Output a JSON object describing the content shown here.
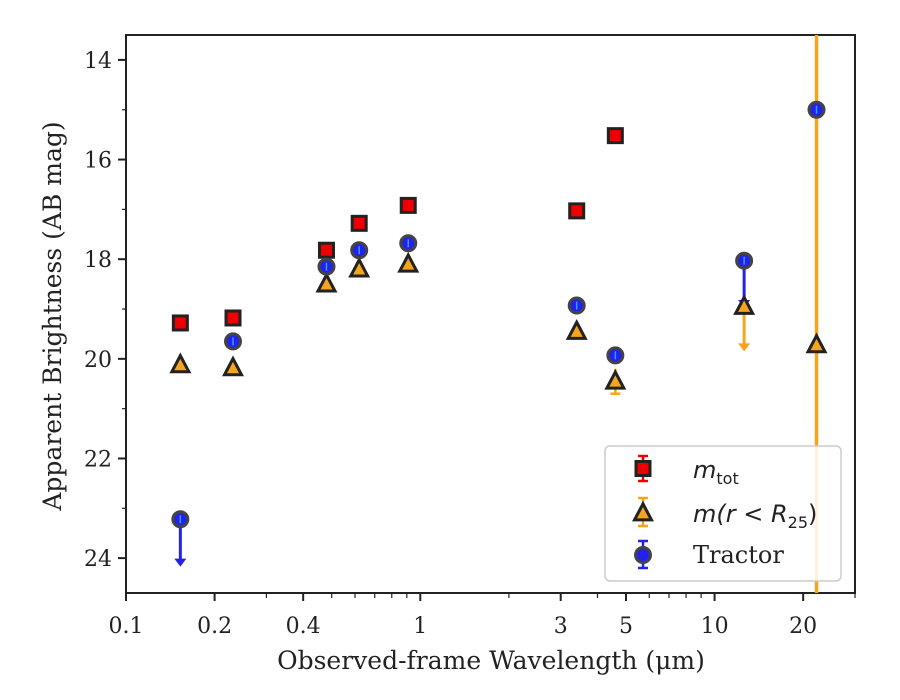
{
  "chart_data": {
    "type": "scatter",
    "xlabel": "Observed-frame Wavelength (μm)",
    "ylabel": "Apparent Brightness (AB mag)",
    "xscale": "log",
    "yaxis_inverted": true,
    "xlim": [
      0.1,
      30
    ],
    "ylim": [
      24.7,
      13.5
    ],
    "xticks": [
      0.1,
      0.2,
      0.4,
      1,
      3,
      5,
      10,
      20
    ],
    "xtick_labels": [
      "0.1",
      "0.2",
      "0.4",
      "1",
      "3",
      "5",
      "10",
      "20"
    ],
    "yticks": [
      14,
      16,
      18,
      20,
      22,
      24
    ],
    "ytick_labels": [
      "14",
      "16",
      "18",
      "20",
      "22",
      "24"
    ],
    "legend_position": "lower-right",
    "series": [
      {
        "name": "m_tot",
        "legend_main": "m",
        "legend_sub": "tot",
        "marker": "square",
        "color": "#ee0000",
        "x": [
          0.153,
          0.231,
          0.48,
          0.62,
          0.91,
          3.4,
          4.6
        ],
        "y": [
          19.28,
          19.18,
          17.82,
          17.28,
          16.92,
          17.03,
          15.52
        ]
      },
      {
        "name": "m(r < R_25)",
        "legend_main": "m(r < R",
        "legend_sub": "25",
        "legend_close": ")",
        "marker": "triangle",
        "color": "#f5a41e",
        "x": [
          0.153,
          0.231,
          0.48,
          0.62,
          0.91,
          3.4,
          4.6,
          12.6,
          22.2
        ],
        "y": [
          20.12,
          20.18,
          18.5,
          18.2,
          18.1,
          19.45,
          20.45,
          18.95,
          19.72
        ],
        "yerr": [
          0.1,
          0.05,
          0.05,
          0.05,
          0.05,
          0.05,
          0.25,
          0.1,
          0.05
        ],
        "upper_limit_index": [
          7
        ],
        "full_errorbar_index": [
          8
        ]
      },
      {
        "name": "Tractor",
        "legend_main": "Tractor",
        "marker": "circle",
        "color": "#2222ee",
        "x": [
          0.153,
          0.231,
          0.48,
          0.62,
          0.91,
          3.4,
          4.6,
          12.6,
          22.2
        ],
        "y": [
          23.22,
          19.65,
          18.15,
          17.82,
          17.68,
          18.93,
          19.93,
          18.03,
          15.0
        ],
        "upper_limit_index": [
          0,
          7
        ]
      }
    ]
  }
}
